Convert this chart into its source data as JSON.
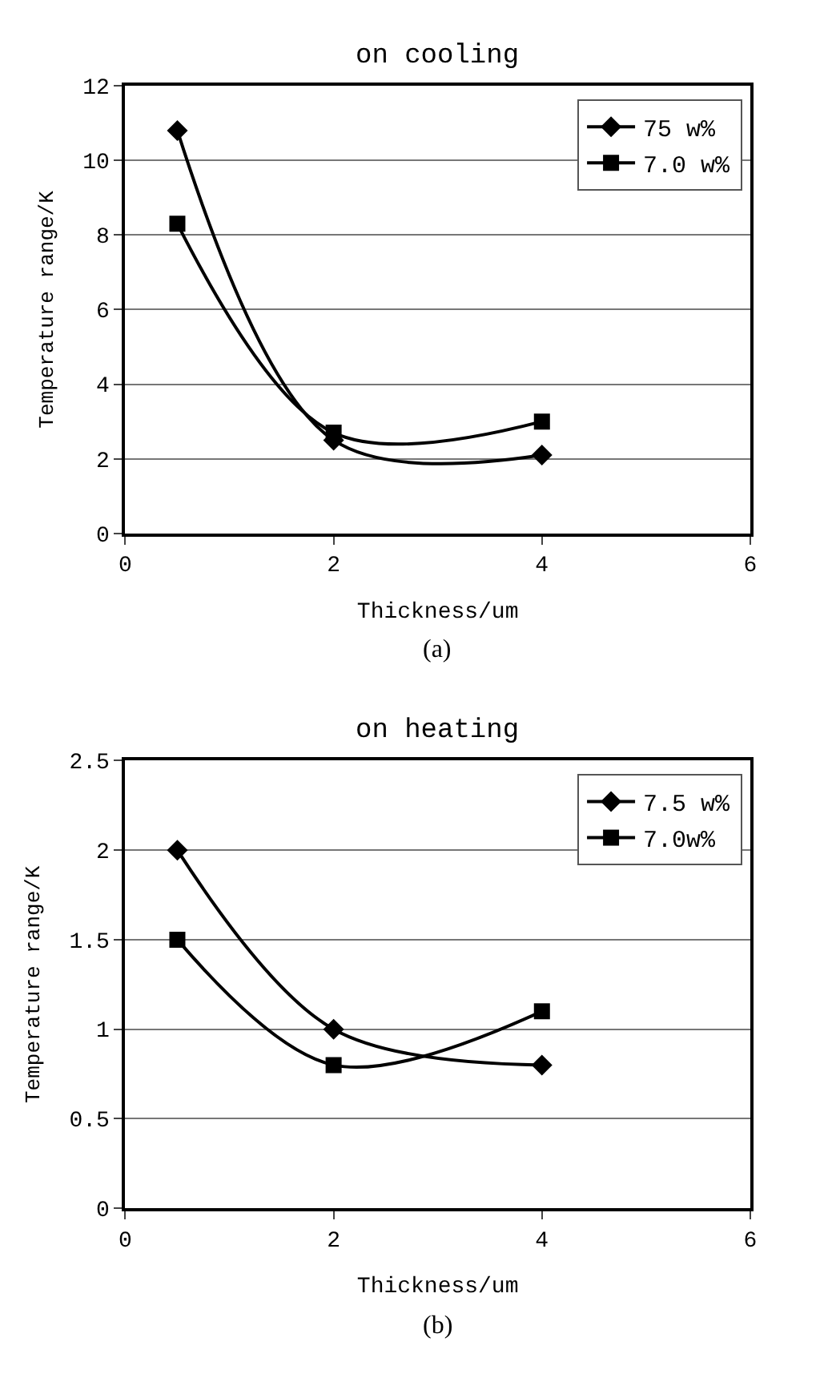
{
  "chart_data": [
    {
      "type": "line",
      "title": "on cooling",
      "xlabel": "Thickness/um",
      "ylabel": "Temperature range/K",
      "x": [
        0.5,
        2,
        4
      ],
      "series": [
        {
          "name": "75 w%",
          "color": "#000000",
          "values": [
            10.8,
            2.5,
            2.1
          ],
          "marker": "diamond"
        },
        {
          "name": "7.0 w%",
          "color": "#000000",
          "values": [
            8.3,
            2.7,
            3.0
          ],
          "marker": "square"
        }
      ],
      "xlim": [
        0,
        6
      ],
      "xticks": [
        0,
        2,
        4,
        6
      ],
      "ylim": [
        0,
        12
      ],
      "yticks": [
        0,
        2,
        4,
        6,
        8,
        10,
        12
      ],
      "grid": "y",
      "legend": "top right",
      "line_style": "solid",
      "annotations": [
        "(a)"
      ]
    },
    {
      "type": "line",
      "title": "on heating",
      "xlabel": "Thickness/um",
      "ylabel": "Temperature range/K",
      "x": [
        0.5,
        2,
        4
      ],
      "series": [
        {
          "name": "7.5 w%",
          "color": "#000000",
          "values": [
            2.0,
            1.0,
            0.8
          ],
          "marker": "diamond"
        },
        {
          "name": "7.0w%",
          "color": "#000000",
          "values": [
            1.5,
            0.8,
            1.1
          ],
          "marker": "square"
        }
      ],
      "xlim": [
        0,
        6
      ],
      "xticks": [
        0,
        2,
        4,
        6
      ],
      "ylim": [
        0,
        2.5
      ],
      "yticks": [
        0,
        0.5,
        1,
        1.5,
        2,
        2.5
      ],
      "grid": "y",
      "legend": "top right",
      "line_style": "solid",
      "annotations": [
        "(b)"
      ]
    }
  ]
}
